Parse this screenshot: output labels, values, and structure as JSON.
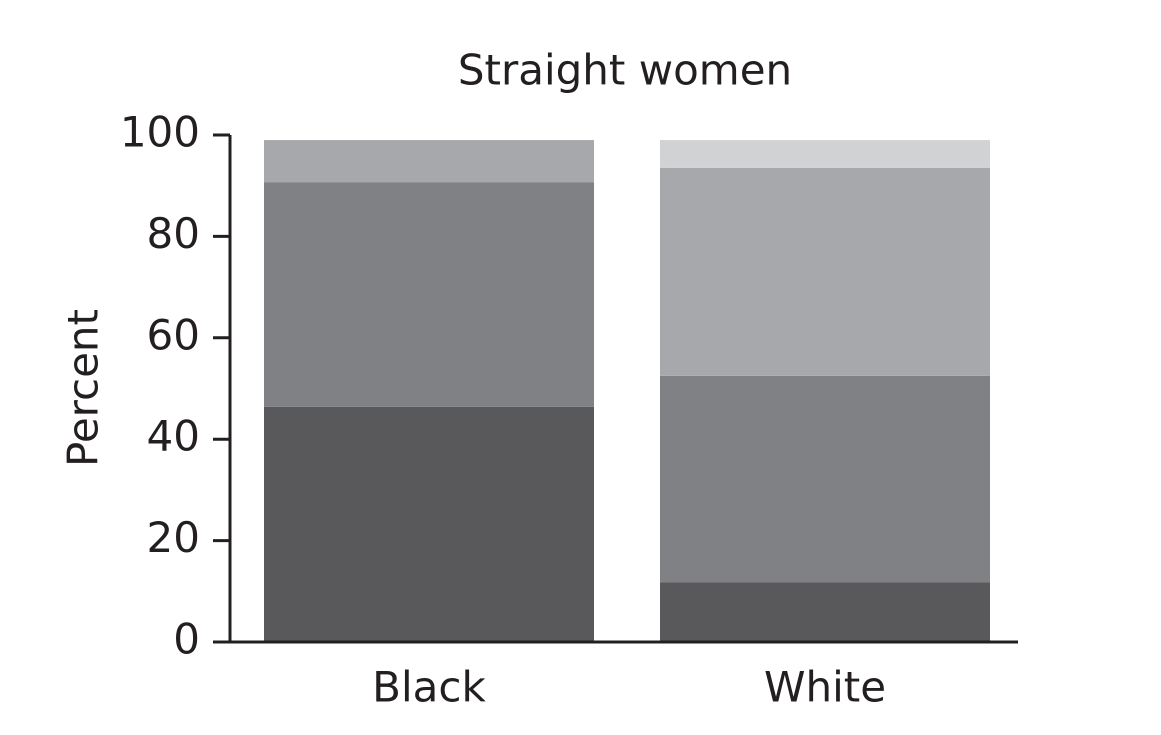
{
  "chart_data": {
    "type": "stacked_bar",
    "title": "Straight women",
    "y_label": "Percent",
    "categories": [
      "Black",
      "White"
    ],
    "series": [
      {
        "color": "#59595b",
        "values": [
          46.4,
          11.8
        ]
      },
      {
        "color": "#808184",
        "values": [
          44.3,
          40.7
        ]
      },
      {
        "color": "#a7a8ab",
        "values": [
          8.3,
          41.0
        ]
      },
      {
        "color": "#d1d2d4",
        "values": [
          0,
          5.5
        ]
      }
    ],
    "ylim": [
      0,
      100
    ],
    "yticks": [
      0,
      20,
      40,
      60,
      80,
      100
    ],
    "grid": false
  }
}
